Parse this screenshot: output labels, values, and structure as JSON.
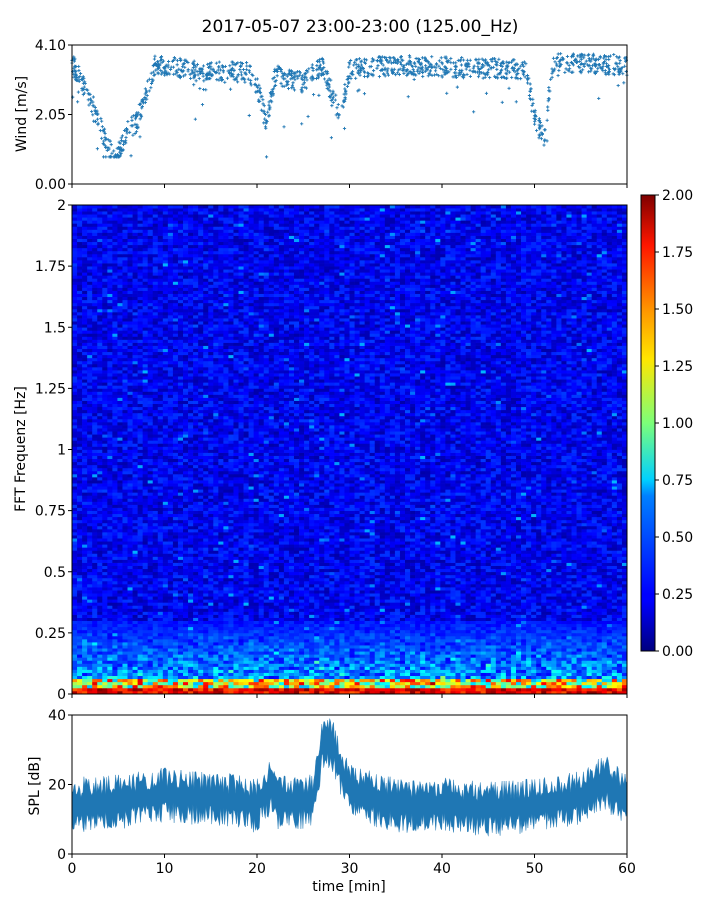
{
  "title": "2017-05-07 23:00-23:00 (125.00_Hz)",
  "chart_data": [
    {
      "type": "scatter",
      "ylabel": "Wind [m/s]",
      "xlim": [
        0,
        60
      ],
      "ylim": [
        0,
        4.1
      ],
      "yticks": [
        "0.00",
        "2.05",
        "4.10"
      ],
      "series": [
        {
          "color": "#1f77b4",
          "marker": "plus",
          "trend": [
            [
              0,
              3.6
            ],
            [
              2,
              2.5
            ],
            [
              4,
              1.0
            ],
            [
              5,
              0.9
            ],
            [
              6,
              1.6
            ],
            [
              7,
              1.8
            ],
            [
              8,
              2.7
            ],
            [
              9,
              3.5
            ],
            [
              10,
              3.5
            ],
            [
              14,
              3.3
            ],
            [
              19,
              3.3
            ],
            [
              20,
              2.9
            ],
            [
              21,
              1.8
            ],
            [
              22,
              3.2
            ],
            [
              25,
              3.0
            ],
            [
              27,
              3.5
            ],
            [
              29,
              2.0
            ],
            [
              30,
              3.4
            ],
            [
              35,
              3.5
            ],
            [
              45,
              3.4
            ],
            [
              49,
              3.4
            ],
            [
              50,
              2.0
            ],
            [
              51,
              1.3
            ],
            [
              52,
              3.6
            ],
            [
              60,
              3.5
            ]
          ]
        }
      ]
    },
    {
      "type": "heatmap",
      "ylabel": "FFT Frequenz [Hz]",
      "xlim": [
        0,
        60
      ],
      "ylim": [
        0,
        2
      ],
      "yticks": [
        "0",
        "0.25",
        "0.5",
        "0.75",
        "1",
        "1.25",
        "1.5",
        "1.75",
        "2"
      ],
      "colorbar": {
        "range": [
          0,
          2
        ],
        "ticks": [
          "0.00",
          "0.25",
          "0.50",
          "0.75",
          "1.00",
          "1.25",
          "1.50",
          "1.75",
          "2.00"
        ],
        "colormap": "jet"
      }
    },
    {
      "type": "line",
      "ylabel": "SPL [dB]",
      "xlabel": "time [min]",
      "xlim": [
        0,
        60
      ],
      "ylim": [
        0,
        40
      ],
      "yticks": [
        "0",
        "20",
        "40"
      ],
      "xticks": [
        "0",
        "10",
        "20",
        "30",
        "40",
        "50",
        "60"
      ],
      "series": [
        {
          "color": "#1f77b4",
          "trend": [
            [
              0,
              14
            ],
            [
              5,
              15
            ],
            [
              10,
              17
            ],
            [
              15,
              16
            ],
            [
              20,
              14
            ],
            [
              21.7,
              20
            ],
            [
              22,
              15
            ],
            [
              26,
              15
            ],
            [
              27,
              31
            ],
            [
              28,
              33
            ],
            [
              29,
              25
            ],
            [
              30,
              18
            ],
            [
              35,
              14
            ],
            [
              40,
              14
            ],
            [
              45,
              13
            ],
            [
              50,
              14
            ],
            [
              55,
              16
            ],
            [
              57.5,
              21
            ],
            [
              60,
              15
            ]
          ]
        }
      ]
    }
  ]
}
